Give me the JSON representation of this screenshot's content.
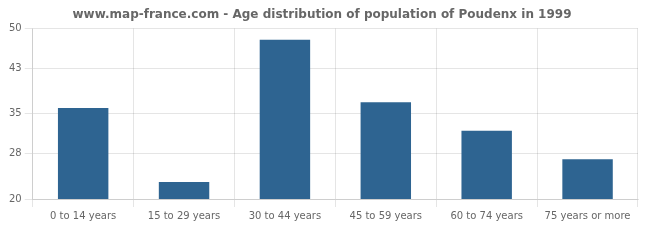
{
  "chart_data": {
    "type": "bar",
    "title": "www.map-france.com - Age distribution of population of Poudenx in 1999",
    "categories": [
      "0 to 14 years",
      "15 to 29 years",
      "30 to 44 years",
      "45 to 59 years",
      "60 to 74 years",
      "75 years or more"
    ],
    "values": [
      36,
      23,
      48,
      37,
      32,
      27
    ],
    "color": "#2e6491",
    "ylim": [
      20,
      50
    ],
    "yticks": [
      20,
      28,
      35,
      43,
      50
    ],
    "grid": true
  }
}
